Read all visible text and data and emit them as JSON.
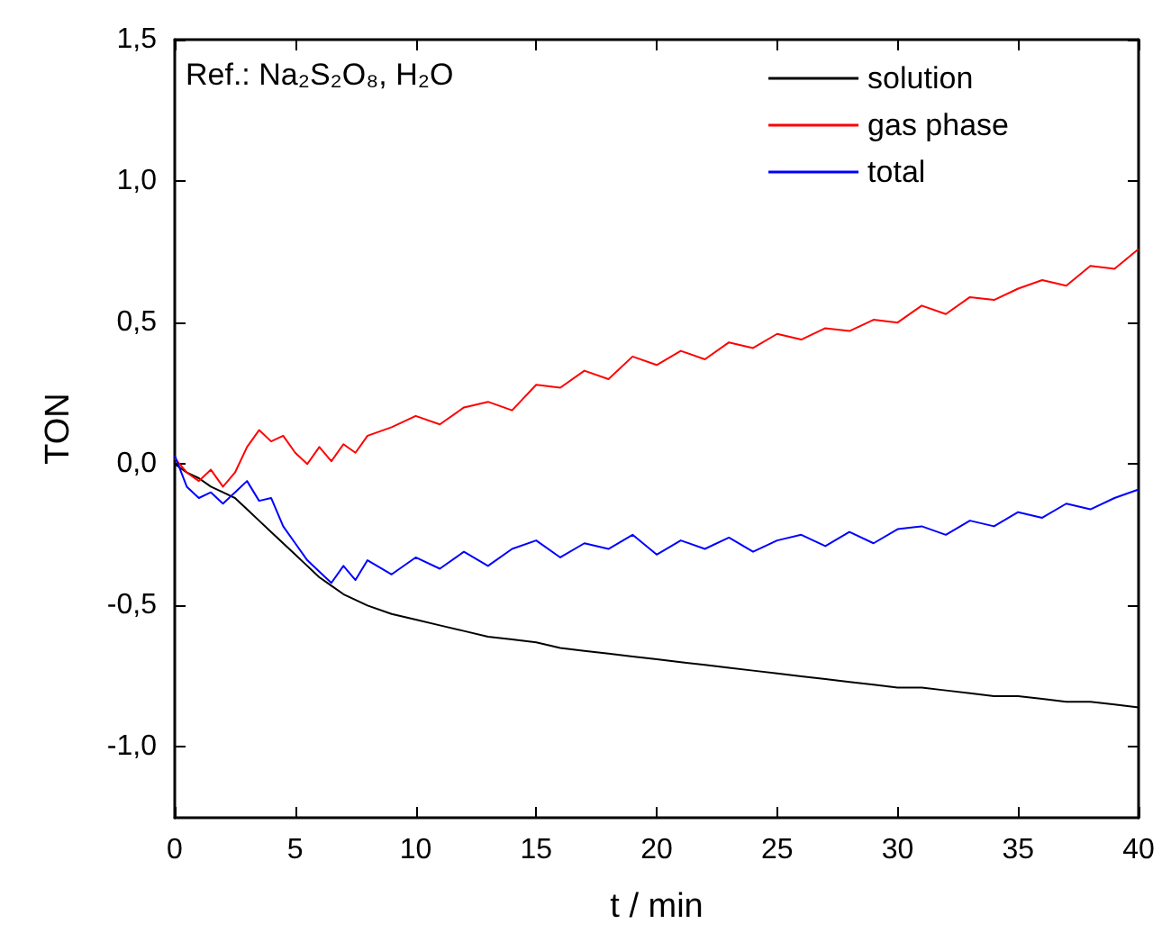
{
  "chart_data": {
    "type": "line",
    "xlabel": "t / min",
    "ylabel": "TON",
    "annotations": [
      "Ref.: Na₂S₂O₈, H₂O"
    ],
    "x": [
      0,
      0.5,
      1,
      1.5,
      2,
      2.5,
      3,
      3.5,
      4,
      4.5,
      5,
      5.5,
      6,
      6.5,
      7,
      7.5,
      8,
      9,
      10,
      11,
      12,
      13,
      14,
      15,
      16,
      17,
      18,
      19,
      20,
      21,
      22,
      23,
      24,
      25,
      26,
      27,
      28,
      29,
      30,
      31,
      32,
      33,
      34,
      35,
      36,
      37,
      38,
      39,
      40
    ],
    "series": [
      {
        "name": "solution",
        "color": "#000000",
        "values": [
          0,
          -0.03,
          -0.05,
          -0.08,
          -0.1,
          -0.12,
          -0.16,
          -0.2,
          -0.24,
          -0.28,
          -0.32,
          -0.36,
          -0.4,
          -0.43,
          -0.46,
          -0.48,
          -0.5,
          -0.53,
          -0.55,
          -0.57,
          -0.59,
          -0.61,
          -0.62,
          -0.63,
          -0.65,
          -0.66,
          -0.67,
          -0.68,
          -0.69,
          -0.7,
          -0.71,
          -0.72,
          -0.73,
          -0.74,
          -0.75,
          -0.76,
          -0.77,
          -0.78,
          -0.79,
          -0.79,
          -0.8,
          -0.81,
          -0.82,
          -0.82,
          -0.83,
          -0.84,
          -0.84,
          -0.85,
          -0.86
        ]
      },
      {
        "name": "gas phase",
        "color": "#ff0000",
        "values": [
          0.02,
          -0.03,
          -0.06,
          -0.02,
          -0.08,
          -0.03,
          0.06,
          0.12,
          0.08,
          0.1,
          0.04,
          0.0,
          0.06,
          0.01,
          0.07,
          0.04,
          0.1,
          0.13,
          0.17,
          0.14,
          0.2,
          0.22,
          0.19,
          0.28,
          0.27,
          0.33,
          0.3,
          0.38,
          0.35,
          0.4,
          0.37,
          0.43,
          0.41,
          0.46,
          0.44,
          0.48,
          0.47,
          0.51,
          0.5,
          0.56,
          0.53,
          0.59,
          0.58,
          0.62,
          0.65,
          0.63,
          0.7,
          0.69,
          0.76
        ]
      },
      {
        "name": "total",
        "color": "#0000ff",
        "values": [
          0.03,
          -0.08,
          -0.12,
          -0.1,
          -0.14,
          -0.1,
          -0.06,
          -0.13,
          -0.12,
          -0.22,
          -0.28,
          -0.34,
          -0.38,
          -0.42,
          -0.36,
          -0.41,
          -0.34,
          -0.39,
          -0.33,
          -0.37,
          -0.31,
          -0.36,
          -0.3,
          -0.27,
          -0.33,
          -0.28,
          -0.3,
          -0.25,
          -0.32,
          -0.27,
          -0.3,
          -0.26,
          -0.31,
          -0.27,
          -0.25,
          -0.29,
          -0.24,
          -0.28,
          -0.23,
          -0.22,
          -0.25,
          -0.2,
          -0.22,
          -0.17,
          -0.19,
          -0.14,
          -0.16,
          -0.12,
          -0.09
        ]
      }
    ],
    "xlim": [
      0,
      40
    ],
    "xticks": [
      0,
      5,
      10,
      15,
      20,
      25,
      30,
      35,
      40
    ],
    "ylim": [
      -1.25,
      1.5
    ],
    "yticks": [
      {
        "value": -1,
        "label": "-1,0"
      },
      {
        "value": -0.5,
        "label": "-0,5"
      },
      {
        "value": 0,
        "label": "0,0"
      },
      {
        "value": 0.5,
        "label": "0,5"
      },
      {
        "value": 1,
        "label": "1,0"
      },
      {
        "value": 1.5,
        "label": "1,5"
      }
    ],
    "legend": "top right",
    "grid": false,
    "marker": "none",
    "line_style": "solid"
  }
}
